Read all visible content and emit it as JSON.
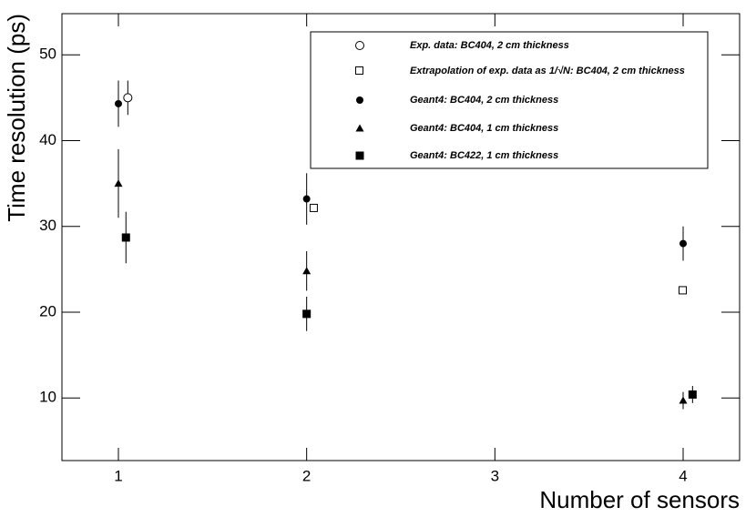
{
  "chart_data": {
    "type": "scatter",
    "x_label": "Number of sensors",
    "y_label": "Time resolution (ps)",
    "xlim": [
      0.7,
      4.3
    ],
    "ylim": [
      2.7,
      54.8
    ],
    "xticks": [
      1,
      2,
      3,
      4
    ],
    "yticks": [
      10,
      20,
      30,
      40,
      50
    ],
    "legend": "top-right",
    "series": [
      {
        "name": "Exp. data: BC404, 2 cm thickness",
        "marker": "open-circle",
        "color": "#000000",
        "x": [
          1.05
        ],
        "values": [
          45
        ],
        "errors": [
          2
        ]
      },
      {
        "name": "Extrapolation of exp. data as 1/√N: BC404, 2 cm thickness",
        "marker": "open-square",
        "color": "#000000",
        "x": [
          2.04,
          4.0
        ],
        "values": [
          32.1,
          22.5
        ]
      },
      {
        "name": "Geant4: BC404, 2 cm thickness",
        "marker": "circle",
        "color": "#000000",
        "x": [
          1.0,
          2.0,
          4.0
        ],
        "values": [
          44.3,
          33.2,
          28
        ],
        "errors": [
          2.7,
          3,
          2
        ]
      },
      {
        "name": "Geant4: BC404, 1 cm thickness",
        "marker": "triangle",
        "color": "#000000",
        "x": [
          1.0,
          2.0,
          4.0
        ],
        "values": [
          35,
          24.8,
          9.7
        ],
        "errors": [
          4,
          2.3,
          1
        ]
      },
      {
        "name": "Geant4: BC422, 1 cm thickness",
        "marker": "square",
        "color": "#000000",
        "x": [
          1.04,
          2.0,
          4.05
        ],
        "values": [
          28.7,
          19.8,
          10.4
        ],
        "errors": [
          3,
          2,
          1
        ]
      }
    ]
  }
}
